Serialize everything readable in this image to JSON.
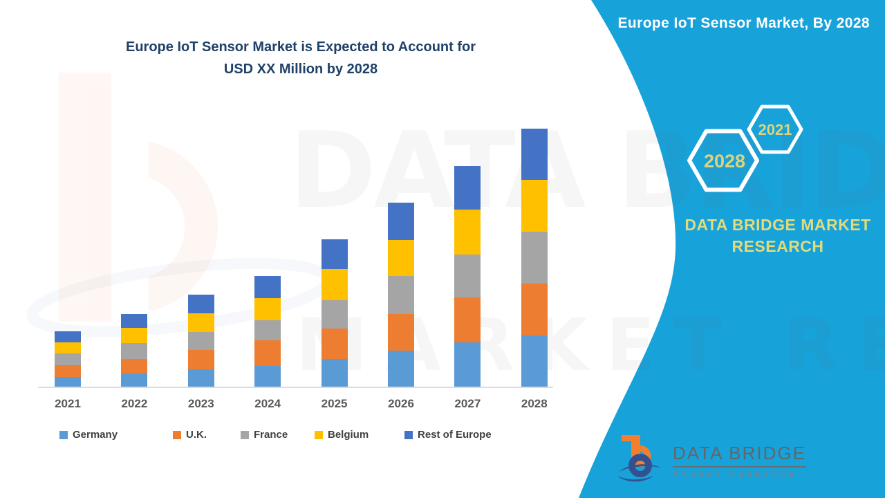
{
  "header": {
    "panel_title": "Europe IoT Sensor Market, By 2028"
  },
  "chart": {
    "title_line1": "Europe IoT Sensor Market is Expected to Account for",
    "title_line2": "USD XX Million by 2028"
  },
  "chart_data": {
    "type": "bar",
    "stacked": true,
    "title": "Europe IoT Sensor Market is Expected to Account for USD XX Million by 2028",
    "categories": [
      "2021",
      "2022",
      "2023",
      "2024",
      "2025",
      "2026",
      "2027",
      "2028"
    ],
    "series": [
      {
        "name": "Germany",
        "color": "#5B9BD5",
        "values": [
          15,
          20,
          26,
          31,
          41,
          53,
          65,
          75
        ]
      },
      {
        "name": "U.K.",
        "color": "#ED7D31",
        "values": [
          17,
          21,
          28,
          37,
          44,
          53,
          65,
          75
        ]
      },
      {
        "name": "France",
        "color": "#A5A5A5",
        "values": [
          17,
          23,
          26,
          29,
          41,
          55,
          62,
          75
        ]
      },
      {
        "name": "Belgium",
        "color": "#FFC000",
        "values": [
          16,
          22,
          27,
          32,
          45,
          52,
          65,
          75
        ]
      },
      {
        "name": "Rest of Europe",
        "color": "#4472C4",
        "values": [
          16,
          20,
          27,
          32,
          43,
          54,
          63,
          74
        ]
      }
    ],
    "totals": [
      81,
      106,
      134,
      161,
      214,
      267,
      320,
      374
    ],
    "units": "relative height (no y-axis shown, values in USD XX Million)",
    "xlabel": "",
    "ylabel": "",
    "grid": false,
    "legend_position": "bottom"
  },
  "side_panel": {
    "hexagon_back_year": "2021",
    "hexagon_front_year": "2028",
    "brand_line1": "DATA BRIDGE MARKET",
    "brand_line2": "RESEARCH",
    "accent_blue": "#17A2DA",
    "accent_yellow": "#E3DA7B"
  },
  "watermark": {
    "line1": "DATA BRIDGE",
    "line2": "MARKET RESEARCH"
  },
  "footer": {
    "brand": "DATA BRIDGE",
    "sub_brand": "MARKET RESEARCH"
  }
}
